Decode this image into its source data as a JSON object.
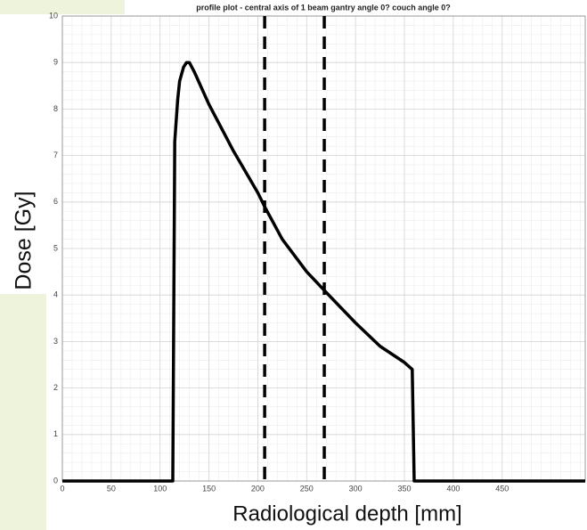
{
  "chart_data": {
    "type": "line",
    "title": "profile plot - central axis of 1 beam gantry angle 0? couch angle 0?",
    "xlabel": "Radiological depth [mm]",
    "ylabel": "Dose [Gy]",
    "series": [
      {
        "color": "#000000",
        "x": [
          0,
          113,
          115,
          118,
          120,
          124,
          127,
          130,
          135,
          150,
          175,
          200,
          207,
          225,
          250,
          268,
          300,
          325,
          350,
          358,
          360,
          535
        ],
        "values": [
          0,
          0,
          7.3,
          8.2,
          8.6,
          8.9,
          9.0,
          9.0,
          8.8,
          8.1,
          7.1,
          6.2,
          5.9,
          5.2,
          4.5,
          4.1,
          3.4,
          2.9,
          2.55,
          2.4,
          0,
          0
        ]
      }
    ],
    "vlines": [
      207,
      268
    ],
    "xlim": [
      0,
      535
    ],
    "xticks": [
      0,
      50,
      100,
      150,
      200,
      250,
      300,
      350,
      400,
      450
    ],
    "ylim": [
      0,
      10
    ],
    "yticks": [
      0,
      1,
      2,
      3,
      4,
      5,
      6,
      7,
      8,
      9,
      10
    ],
    "grid": true,
    "xminor": 10,
    "yminor": 0.2
  }
}
